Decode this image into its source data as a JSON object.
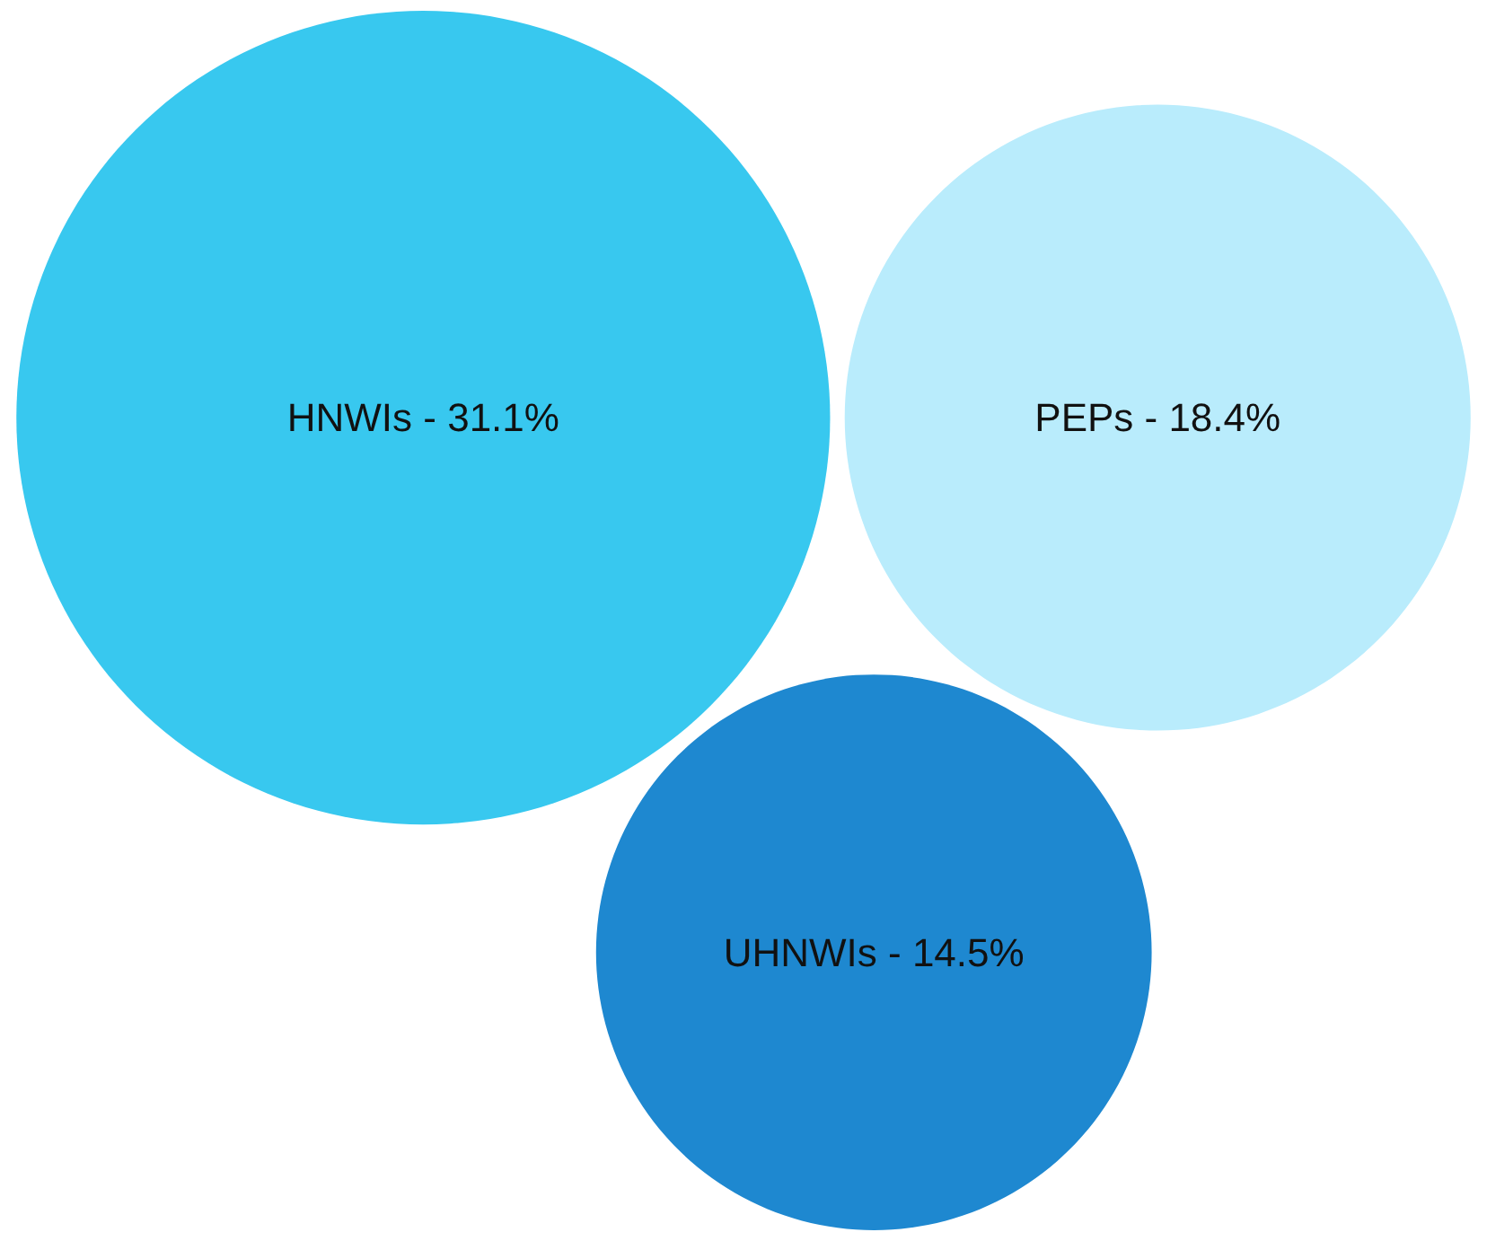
{
  "chart_data": {
    "type": "other",
    "categories": [
      "HNWIs -",
      "PEPs -",
      "UHNWIs -"
    ],
    "values": [
      31.1,
      18.4,
      14.5
    ],
    "value_labels": [
      "31.1%",
      "18.4%",
      "14.5%"
    ],
    "colors": [
      "#38c8ef",
      "#b9ecfc",
      "#1e88d0"
    ]
  }
}
